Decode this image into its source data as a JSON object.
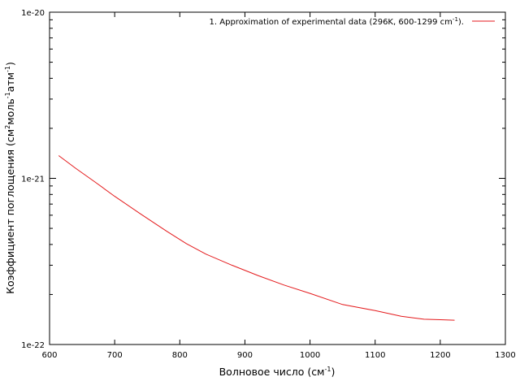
{
  "chart_data": {
    "type": "line",
    "xlabel": {
      "main": "Волновое число (см",
      "sup": "-1",
      "tail": ")"
    },
    "ylabel": {
      "parts": [
        {
          "text": "Коэффициент поглощения (см"
        },
        {
          "text": "2",
          "sup": true
        },
        {
          "text": "моль"
        },
        {
          "text": "-1",
          "sup": true
        },
        {
          "text": "атм"
        },
        {
          "text": "-1",
          "sup": true
        },
        {
          "text": ")"
        }
      ]
    },
    "x_ticks": [
      600,
      700,
      800,
      900,
      1000,
      1100,
      1200,
      1300
    ],
    "y_ticks": [
      {
        "value": 1e-22,
        "label": "1e-22"
      },
      {
        "value": 1e-21,
        "label": "1e-21"
      },
      {
        "value": 1e-20,
        "label": "1e-20"
      }
    ],
    "xlim": [
      600,
      1300
    ],
    "ylim": [
      1e-22,
      1e-20
    ],
    "y_scale": "log",
    "grid": false,
    "legend_position": "top-right",
    "series": [
      {
        "name": "1. Approximation of experimental data (296K, 600-1299 cm",
        "name_sup": "-1",
        "name_tail": ").",
        "color": "#e41a1c",
        "x": [
          614,
          640,
          670,
          700,
          740,
          780,
          810,
          840,
          880,
          920,
          960,
          1000,
          1050,
          1100,
          1140,
          1175,
          1200,
          1222
        ],
        "y": [
          1.37e-21,
          1.15e-21,
          9.5e-22,
          7.8e-22,
          6.1e-22,
          4.8e-22,
          4.05e-22,
          3.5e-22,
          3e-22,
          2.6e-22,
          2.28e-22,
          2.03e-22,
          1.74e-22,
          1.6e-22,
          1.48e-22,
          1.42e-22,
          1.41e-22,
          1.4e-22
        ]
      }
    ]
  }
}
